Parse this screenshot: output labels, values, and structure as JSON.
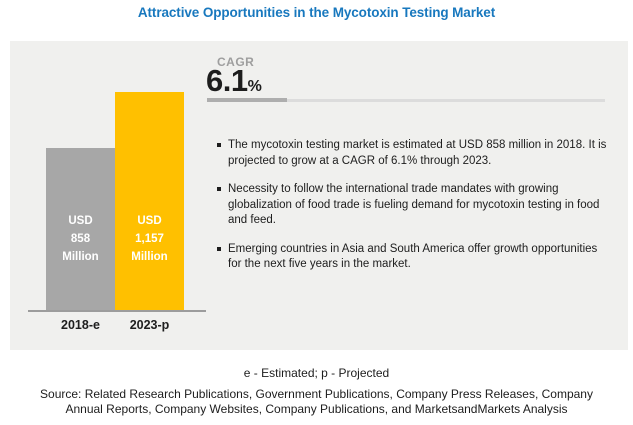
{
  "title": "Attractive Opportunities in the Mycotoxin Testing Market",
  "chart_data": {
    "type": "bar",
    "categories": [
      "2018-e",
      "2023-p"
    ],
    "values": [
      858,
      1157
    ],
    "unit": "USD Million",
    "bar_value_labels": [
      [
        "USD",
        "858",
        "Million"
      ],
      [
        "USD",
        "1,157",
        "Million"
      ]
    ],
    "bar_colors": [
      "#A7A7A7",
      "#FFC000"
    ],
    "legend": "none",
    "grid": "off"
  },
  "cagr": {
    "label": "CAGR",
    "value": "6.1",
    "unit": "%"
  },
  "bullets": [
    "The mycotoxin testing market is estimated at USD 858 million in 2018. It is projected to grow at a CAGR of 6.1% through 2023.",
    "Necessity to follow the international trade mandates with growing globalization of food trade is fueling demand for mycotoxin testing in food and feed.",
    "Emerging countries in Asia and South America offer growth opportunities for the next five years in the market."
  ],
  "footnote": "e - Estimated; p - Projected",
  "source_lines": [
    "Source: Related Research Publications, Government Publications, Company Press Releases, Company",
    "Annual Reports, Company Websites, Company Publications, and MarketsandMarkets Analysis"
  ],
  "colors": {
    "title_blue": "#1878BE",
    "panel_background": "#F0F0EE",
    "bar_gray": "#A7A7A7",
    "bar_yellow": "#FFC000",
    "axis_gray": "#9C9C9C",
    "text_dark": "#1D1D1D",
    "muted_gray": "#9E9E9E"
  }
}
